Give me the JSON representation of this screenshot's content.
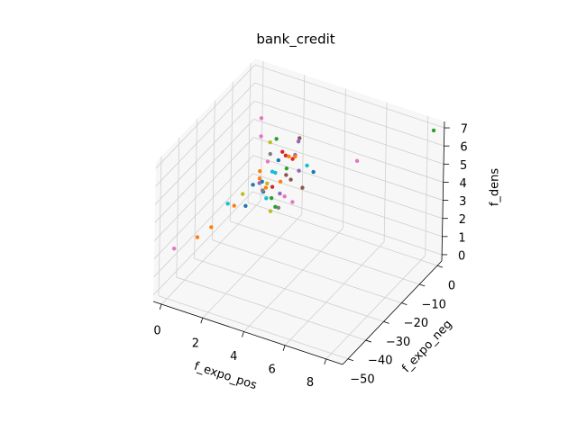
{
  "chart_data": {
    "type": "scatter3d",
    "title": "bank_credit",
    "xlabel": "f_expo_pos",
    "ylabel": "f_expo_neg",
    "zlabel": "f_dens",
    "xlim": [
      -0.4,
      8.8
    ],
    "ylim": [
      -53,
      2.5
    ],
    "zlim": [
      -0.35,
      7.35
    ],
    "xticks": [
      0,
      2,
      4,
      6,
      8
    ],
    "yticks": [
      {
        "value": -50,
        "label": "−50"
      },
      {
        "value": -40,
        "label": "−40"
      },
      {
        "value": -30,
        "label": "−30"
      },
      {
        "value": -20,
        "label": "−20"
      },
      {
        "value": -10,
        "label": "−10"
      },
      0
    ],
    "zticks": [
      0,
      1,
      2,
      3,
      4,
      5,
      6,
      7
    ],
    "grid": true,
    "x": [
      0.5,
      0.7,
      0.9,
      1.1,
      1.3,
      1.5,
      0.6,
      0.8,
      0.7,
      1.0,
      1.2,
      1.4,
      1.6,
      1.8,
      2.0,
      1.9,
      1.7,
      1.5,
      1.2,
      0.9,
      0.6,
      0.4,
      1.0,
      1.3,
      2.2,
      2.3,
      2.0,
      0.8,
      1.1,
      1.4,
      0.5,
      0.9,
      1.6,
      1.8,
      0.3,
      2.5,
      0.34,
      0.34,
      2.2,
      2.15,
      2.9,
      5.0,
      2.0,
      1.7,
      8.5,
      0.74,
      1.05,
      1.6,
      1.45,
      0.74,
      1.4,
      0.47
    ],
    "y": [
      -2,
      -3,
      -2,
      -4,
      -2,
      -1,
      -1,
      -2,
      -1,
      -3,
      -2,
      -3,
      -2,
      -1,
      -2,
      -3,
      -4,
      -5,
      -6,
      -5,
      -4,
      -3,
      -1,
      -1,
      -2,
      -1,
      -3,
      -6,
      -7,
      -6,
      -8,
      -9,
      -8,
      -5,
      -2,
      -1,
      -2,
      -2,
      -2,
      -2,
      -2,
      -2,
      -2,
      -2,
      0,
      -25,
      -25,
      -25,
      -25,
      -42,
      -42,
      -52
    ],
    "z": [
      0.8,
      1.2,
      0.6,
      1.5,
      1.0,
      2.0,
      2.4,
      3.0,
      3.5,
      2.2,
      2.8,
      1.8,
      2.5,
      3.0,
      3.4,
      2.1,
      1.2,
      0.6,
      0.4,
      0.9,
      1.6,
      2.0,
      3.8,
      3.2,
      2.6,
      1.6,
      0.9,
      1.4,
      2.0,
      2.6,
      1.8,
      2.4,
      1.0,
      3.6,
      1.2,
      2.9,
      4.8,
      3.8,
      4.4,
      4.2,
      2.8,
      4.2,
      3.3,
      3.2,
      7.0,
      2.6,
      2.6,
      2.8,
      3.4,
      2.5,
      3.3,
      2.8
    ],
    "colors": [
      "#1f77b4",
      "#ff7f0e",
      "#2ca02c",
      "#d62728",
      "#9467bd",
      "#8c564b",
      "#e377c2",
      "#7f7f7f",
      "#bcbd22",
      "#17becf",
      "#1f77b4",
      "#ff7f0e",
      "#2ca02c",
      "#d62728",
      "#9467bd",
      "#8c564b",
      "#e377c2",
      "#7f7f7f",
      "#bcbd22",
      "#17becf",
      "#1f77b4",
      "#ff7f0e",
      "#2ca02c",
      "#d62728",
      "#9467bd",
      "#8c564b",
      "#e377c2",
      "#7f7f7f",
      "#bcbd22",
      "#17becf",
      "#1f77b4",
      "#ff7f0e",
      "#2ca02c",
      "#d62728",
      "#9467bd",
      "#17becf",
      "#e377c2",
      "#e377c2",
      "#8c564b",
      "#9467bd",
      "#1f77b4",
      "#e377c2",
      "#ff7f0e",
      "#ff7f0e",
      "#2ca02c",
      "#17becf",
      "#ff7f0e",
      "#1f77b4",
      "#bcbd22",
      "#ff7f0e",
      "#ff7f0e",
      "#e377c2"
    ]
  }
}
